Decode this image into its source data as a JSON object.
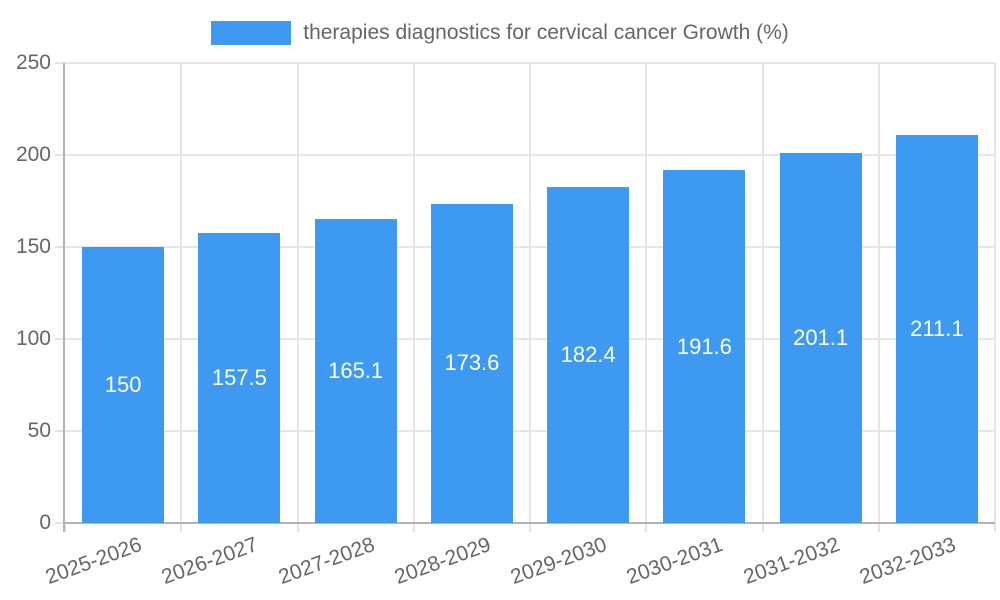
{
  "chart_data": {
    "type": "bar",
    "title": "therapies diagnostics for cervical cancer Growth (%)",
    "categories": [
      "2025-2026",
      "2026-2027",
      "2027-2028",
      "2028-2029",
      "2029-2030",
      "2030-2031",
      "2031-2032",
      "2032-2033"
    ],
    "values": [
      150,
      157.5,
      165.1,
      173.6,
      182.4,
      191.6,
      201.1,
      211.1
    ],
    "value_labels": [
      "150",
      "157.5",
      "165.1",
      "173.6",
      "182.4",
      "191.6",
      "201.1",
      "211.1"
    ],
    "xlabel": "",
    "ylabel": "",
    "ylim": [
      0,
      250
    ],
    "ytick_step": 50,
    "ytick_labels": [
      "0",
      "50",
      "100",
      "150",
      "200",
      "250"
    ],
    "grid": true,
    "legend_position": "top-center",
    "x_label_rotation_deg": -20,
    "colors": {
      "bar": "#3d9af0",
      "bar_value_text": "#ffffff",
      "axis_line": "#b3b3b3",
      "gridline": "#e6e6e6",
      "tick": "#e3e3e3",
      "axis_text": "#666666",
      "legend_text": "#666666",
      "background": "#ffffff"
    }
  }
}
